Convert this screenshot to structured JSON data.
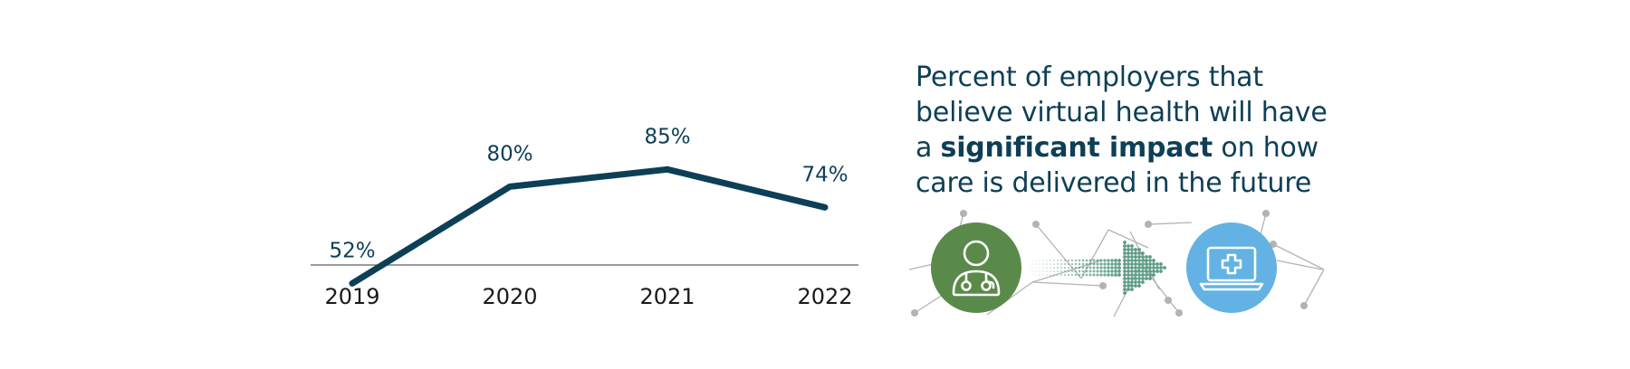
{
  "chart_data": {
    "type": "line",
    "categories": [
      "2019",
      "2020",
      "2021",
      "2022"
    ],
    "series": [
      {
        "values": [
          52,
          80,
          85,
          74
        ]
      }
    ],
    "data_labels": [
      "52%",
      "80%",
      "85%",
      "74%"
    ],
    "ylim": [
      0,
      100
    ],
    "grid": false,
    "title": "",
    "xlabel": "",
    "ylabel": ""
  },
  "caption": {
    "part1": "Percent of employers that believe virtual health will have a ",
    "emphasis": "significant impact",
    "part2": " on how care is delivered in the future"
  },
  "illustration": {
    "left_icon": "doctor-icon",
    "middle_icon": "arrow-icon",
    "right_icon": "laptop-medical-icon",
    "colors": {
      "left_circle": "#5a8a4a",
      "right_circle": "#63b2e3",
      "arrow": "#5b9a83",
      "network": "#b3b3b3"
    }
  },
  "colors": {
    "line": "#0d3f56",
    "text": "#0d3f56",
    "axis": "#7a7a7a",
    "tick_text": "#1a1a1a"
  }
}
